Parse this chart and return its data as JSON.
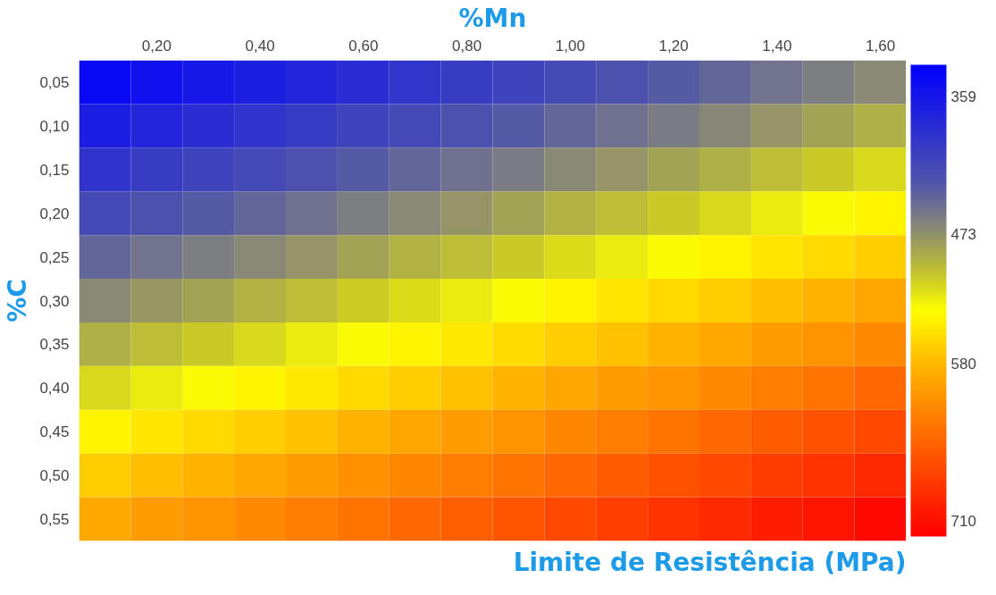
{
  "chart_data": {
    "type": "heatmap",
    "title": "Limite de Resistência (MPa)",
    "xlabel": "%Mn",
    "ylabel": "%C",
    "categories": [
      null,
      "0,20",
      null,
      "0,40",
      null,
      "0,60",
      null,
      "0,80",
      null,
      "1,00",
      null,
      "1,20",
      null,
      "1,40",
      null,
      "1,60"
    ],
    "y_categories": [
      "0,05",
      "0,10",
      "0,15",
      "0,20",
      "0,25",
      "0,30",
      "0,35",
      "0,40",
      "0,45",
      "0,50",
      "0,55"
    ],
    "cells": [
      [
        344,
        353,
        361,
        369,
        377,
        386,
        394,
        402,
        410,
        419,
        427,
        435,
        443,
        452,
        460,
        468
      ],
      [
        368,
        377,
        385,
        393,
        401,
        410,
        418,
        426,
        434,
        443,
        451,
        459,
        467,
        476,
        484,
        492
      ],
      [
        393,
        402,
        410,
        418,
        426,
        435,
        443,
        451,
        459,
        468,
        476,
        484,
        492,
        501,
        509,
        517
      ],
      [
        418,
        427,
        435,
        443,
        451,
        460,
        468,
        476,
        484,
        493,
        501,
        509,
        517,
        526,
        534,
        542
      ],
      [
        443,
        452,
        460,
        468,
        476,
        485,
        493,
        501,
        509,
        518,
        526,
        534,
        542,
        551,
        559,
        567
      ],
      [
        468,
        477,
        485,
        493,
        501,
        510,
        518,
        526,
        534,
        543,
        551,
        559,
        567,
        576,
        584,
        592
      ],
      [
        492,
        501,
        509,
        517,
        525,
        534,
        542,
        550,
        558,
        567,
        575,
        583,
        591,
        600,
        608,
        616
      ],
      [
        517,
        526,
        534,
        542,
        550,
        559,
        567,
        575,
        583,
        592,
        600,
        608,
        616,
        625,
        633,
        641
      ],
      [
        542,
        551,
        559,
        567,
        575,
        584,
        592,
        600,
        608,
        617,
        625,
        633,
        641,
        650,
        658,
        666
      ],
      [
        567,
        576,
        584,
        592,
        600,
        609,
        617,
        625,
        633,
        642,
        650,
        658,
        666,
        675,
        683,
        691
      ],
      [
        591,
        600,
        608,
        616,
        624,
        633,
        641,
        649,
        657,
        666,
        674,
        682,
        690,
        699,
        707,
        715
      ]
    ],
    "clim": [
      333,
      723
    ],
    "cticks": [
      359,
      473,
      580,
      710
    ],
    "grid": false
  }
}
